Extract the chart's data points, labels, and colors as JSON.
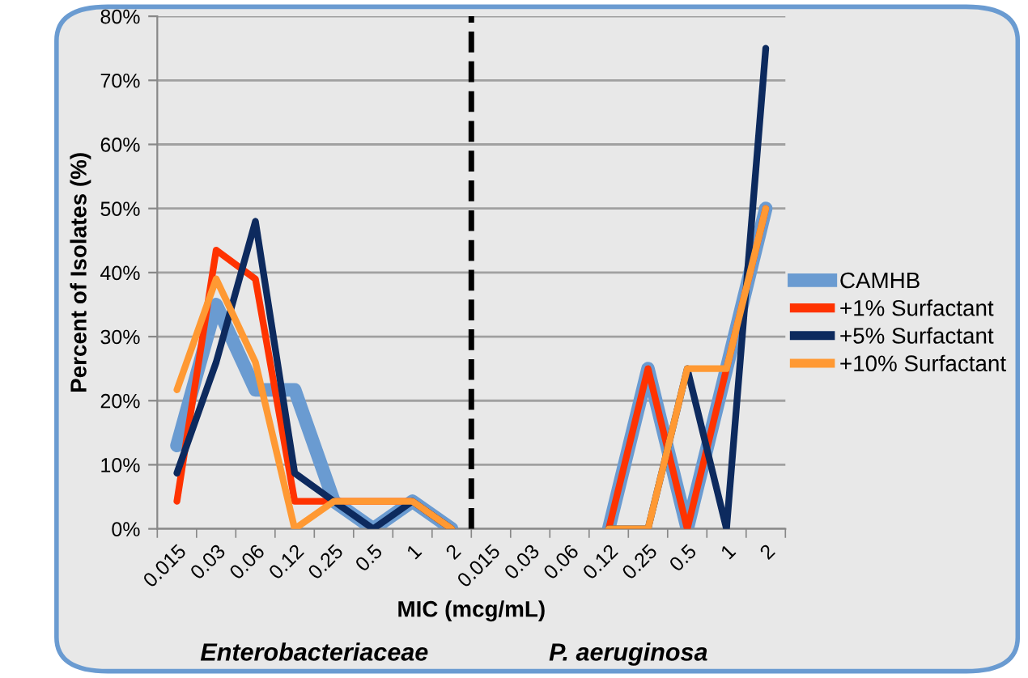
{
  "chart_data": {
    "type": "line",
    "xlabel": "MIC (mcg/mL)",
    "ylabel": "Percent of Isolates (%)",
    "categories": [
      "0.015",
      "0.03",
      "0.06",
      "0.12",
      "0.25",
      "0.5",
      "1",
      "2",
      "0.015",
      "0.03",
      "0.06",
      "0.12",
      "0.25",
      "0.5",
      "1",
      "2"
    ],
    "series": [
      {
        "name": "CAMHB",
        "color": "#6a9bd1",
        "values": [
          13,
          35,
          21.7,
          21.7,
          4.3,
          0,
          4.3,
          0,
          null,
          null,
          null,
          0,
          25,
          0,
          25,
          50
        ]
      },
      {
        "name": "+1% Surfactant",
        "color": "#ff3300",
        "values": [
          4.3,
          43.5,
          39,
          4.3,
          4.3,
          4.3,
          4.3,
          0,
          null,
          null,
          null,
          0,
          25,
          0,
          25,
          50
        ]
      },
      {
        "name": "+5% Surfactant",
        "color": "#0d2a5e",
        "values": [
          8.7,
          26,
          48,
          8.7,
          4.3,
          0,
          4.3,
          0,
          null,
          null,
          null,
          0,
          0,
          25,
          0,
          75
        ]
      },
      {
        "name": "+10% Surfactant",
        "color": "#ff9933",
        "values": [
          21.7,
          39,
          26,
          0,
          4.3,
          4.3,
          4.3,
          0,
          null,
          null,
          null,
          0,
          0,
          25,
          25,
          50
        ]
      }
    ],
    "ylim": [
      0,
      80
    ],
    "yticks": [
      {
        "value": 0,
        "label": "0%"
      },
      {
        "value": 10,
        "label": "10%"
      },
      {
        "value": 20,
        "label": "20%"
      },
      {
        "value": 30,
        "label": "30%"
      },
      {
        "value": 40,
        "label": "40%"
      },
      {
        "value": 50,
        "label": "50%"
      },
      {
        "value": 60,
        "label": "60%"
      },
      {
        "value": 70,
        "label": "70%"
      },
      {
        "value": 80,
        "label": "80%"
      }
    ],
    "ref_lines": [
      {
        "axis": "x",
        "value": "2",
        "color": "#000000",
        "line_style": "dashed"
      }
    ],
    "annotations": [
      "Enterobacteriaceae",
      "P. aeruginosa"
    ],
    "grid": "y",
    "legend": "right",
    "marker": "none",
    "line_style": "solid"
  }
}
